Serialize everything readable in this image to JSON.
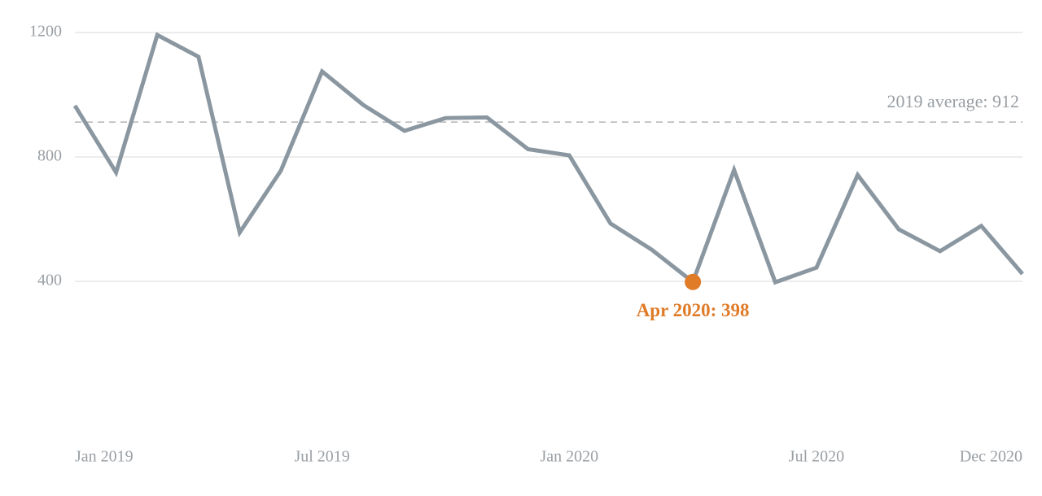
{
  "chart_data": {
    "type": "line",
    "categories": [
      "Jan 2019",
      null,
      null,
      null,
      null,
      null,
      "Jul 2019",
      null,
      null,
      null,
      null,
      null,
      "Jan 2020",
      null,
      null,
      null,
      null,
      null,
      "Jul 2020",
      null,
      null,
      null,
      null,
      "Dec 2020"
    ],
    "values": [
      965,
      750,
      1192,
      1122,
      557,
      756,
      1075,
      967,
      884,
      925,
      927,
      825,
      805,
      586,
      502,
      398,
      758,
      397,
      444,
      742,
      567,
      497,
      578,
      424
    ],
    "color": "#8a97a1",
    "ylim": [
      0,
      1200
    ],
    "yticks": [
      400,
      800,
      1200
    ],
    "grid": true,
    "reference": {
      "value": 912,
      "label": "2019 average: 912",
      "color": "#b0b4b8"
    },
    "annotation": {
      "index": 15,
      "text": "Apr 2020: 398",
      "color": "#e07b28"
    }
  }
}
